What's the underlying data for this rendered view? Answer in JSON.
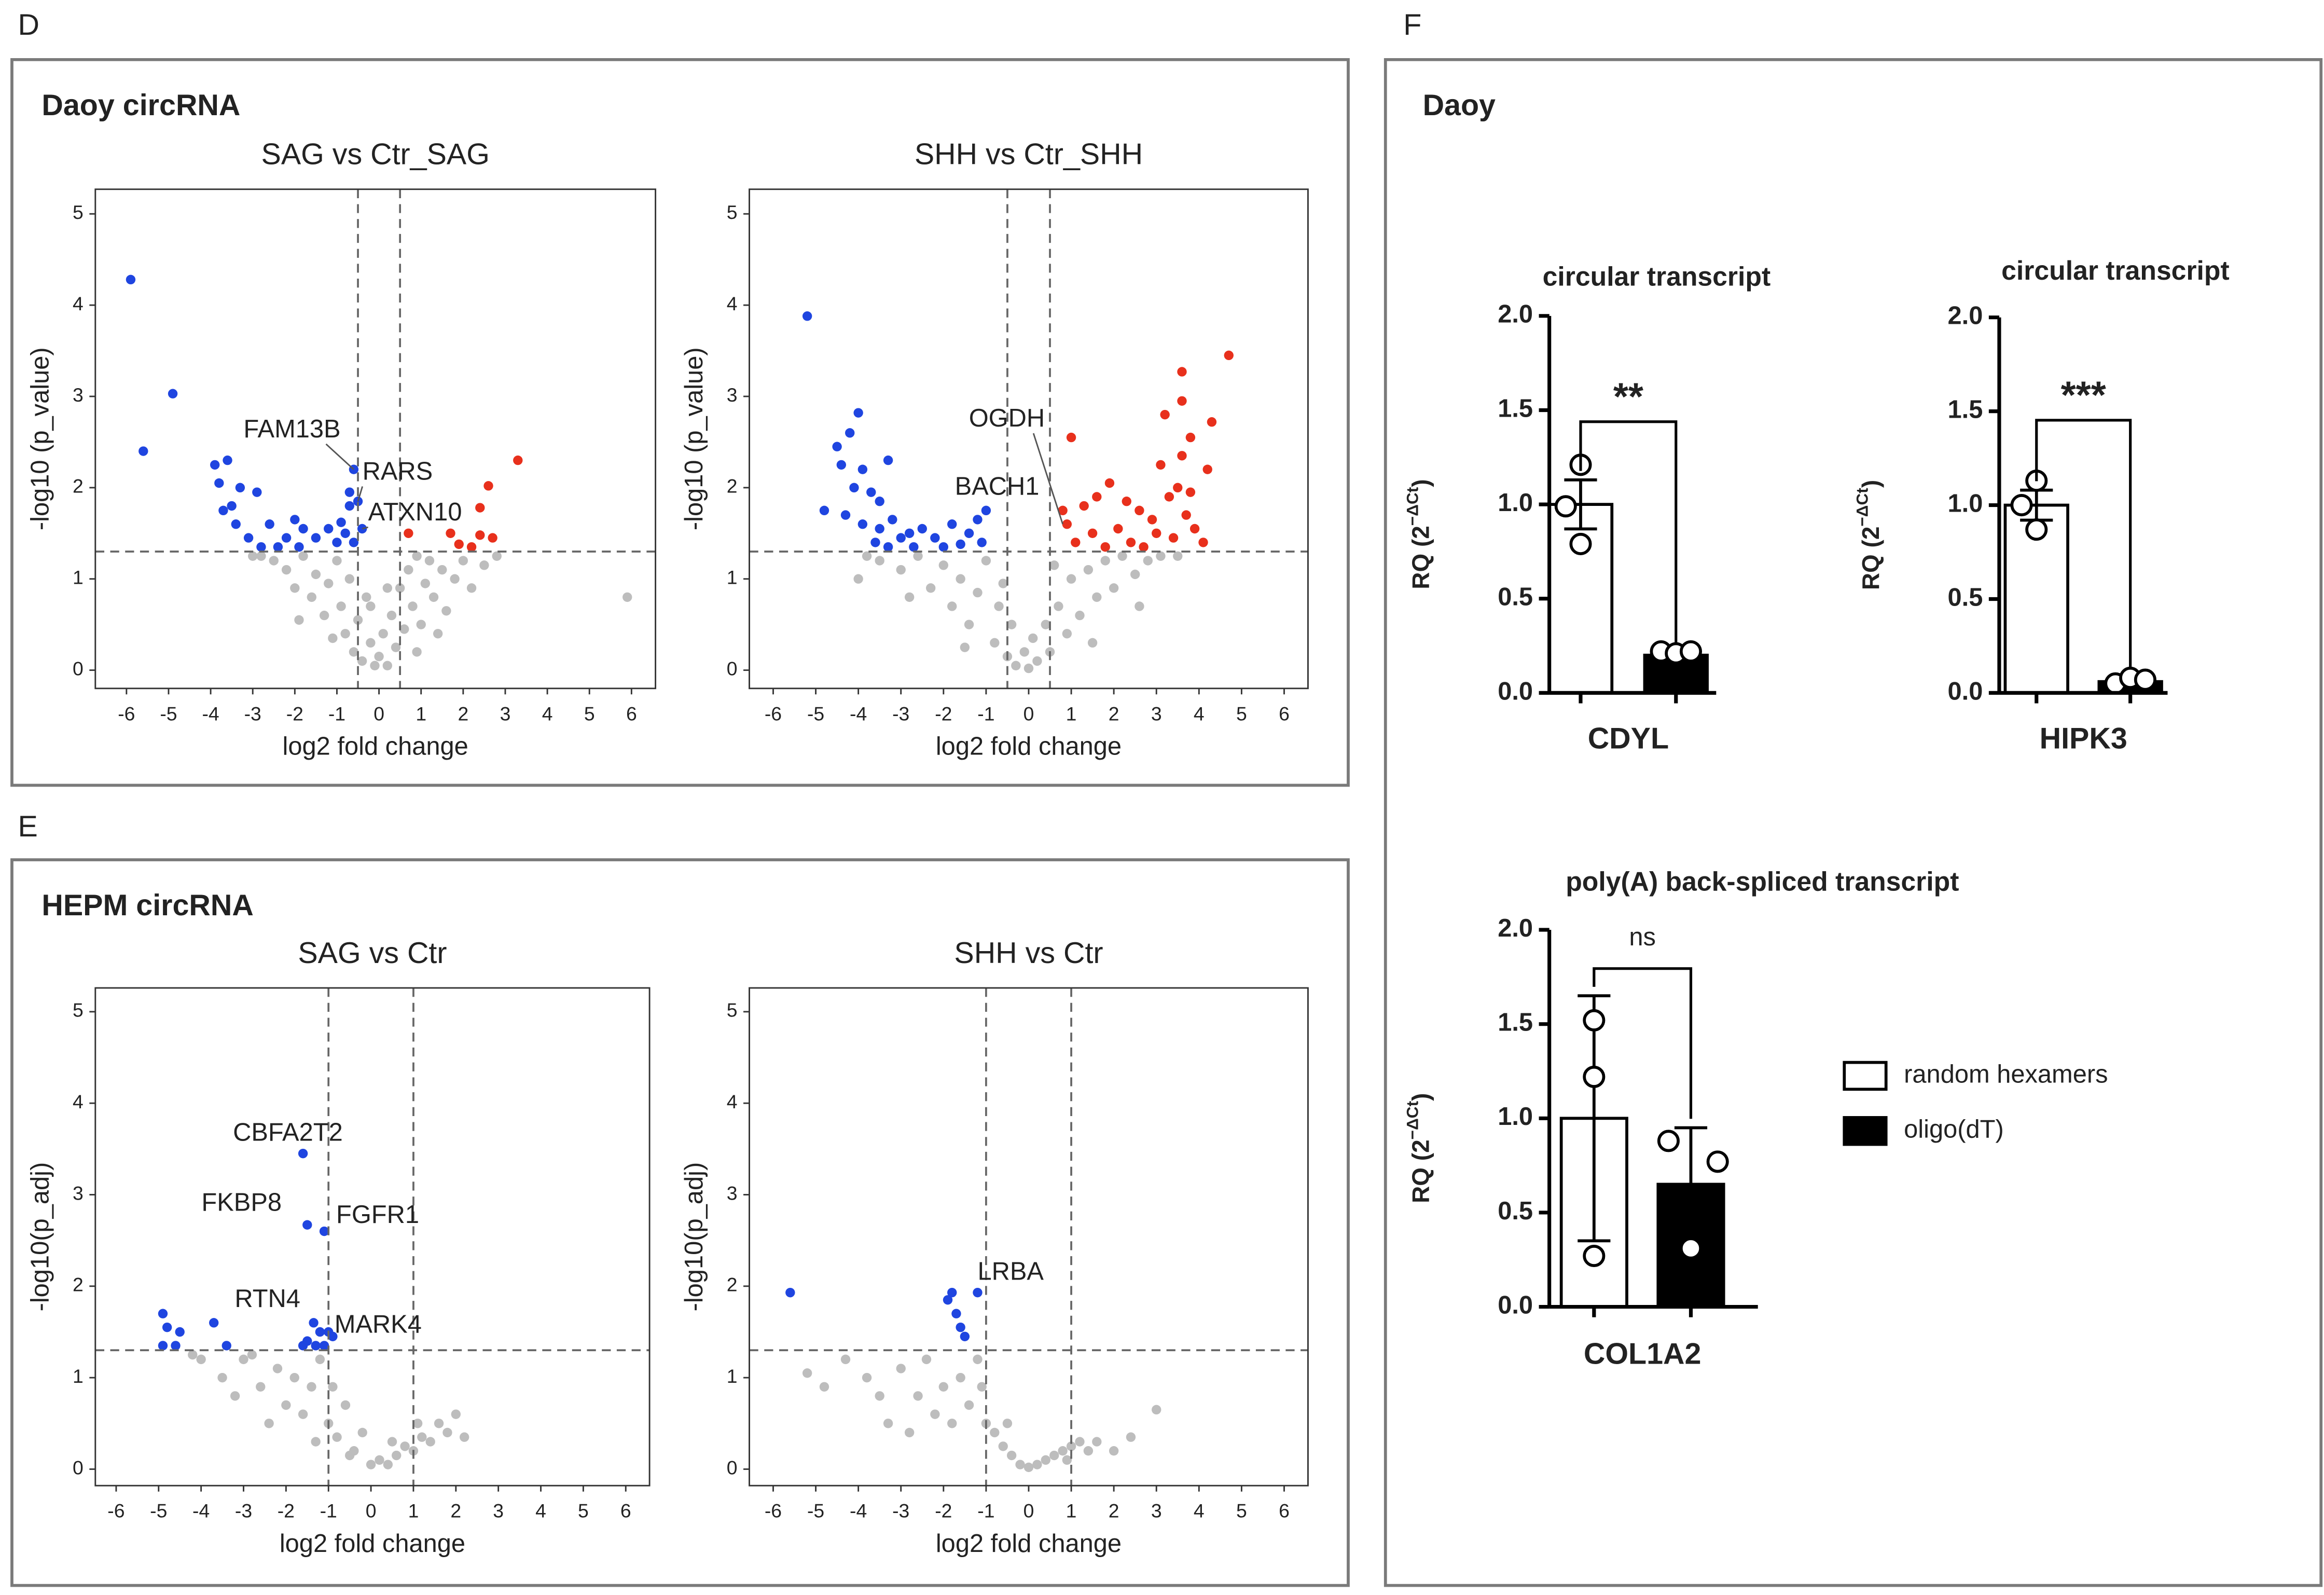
{
  "panels": [
    {
      "letter": "D",
      "title": "Daoy circRNA"
    },
    {
      "letter": "E",
      "title": "HEPM circRNA"
    },
    {
      "letter": "F",
      "title": "Daoy"
    }
  ],
  "chart_data": [
    {
      "type": "scatter",
      "title": "SAG vs Ctr_SAG",
      "x_label": "log2 fold change",
      "y_label": "-log10 (p_value)",
      "xlim": [
        -6.74,
        6.57
      ],
      "ylim": [
        -0.2,
        5.27
      ],
      "xticks": [
        -6,
        -5,
        -4,
        -3,
        -2,
        -1,
        0,
        1,
        2,
        3,
        4,
        5,
        6
      ],
      "yticks": [
        0,
        1,
        2,
        3,
        4,
        5
      ],
      "vlines": [
        -0.5,
        0.5
      ],
      "hlines": [
        1.3
      ],
      "series": [
        {
          "color": "#bdbdbd",
          "x": [
            -2.5,
            -2.2,
            -2.0,
            -1.8,
            -1.6,
            -1.5,
            -1.3,
            -1.2,
            -1.0,
            -0.9,
            -0.8,
            -0.7,
            -0.6,
            -0.5,
            -0.4,
            -0.3,
            -0.2,
            -0.1,
            0,
            0.1,
            0.2,
            0.3,
            0.4,
            0.5,
            0.6,
            0.7,
            0.8,
            0.9,
            1.0,
            1.1,
            1.2,
            1.3,
            1.5,
            1.6,
            1.8,
            2.0,
            2.2,
            2.5,
            -2.8,
            -1.1,
            0.9,
            1.4,
            -1.9,
            2.8,
            5.9,
            -0.2,
            0.2,
            -3.0
          ],
          "y": [
            1.2,
            1.1,
            0.9,
            1.25,
            0.8,
            1.05,
            0.6,
            0.95,
            1.2,
            0.7,
            0.4,
            1.0,
            0.2,
            0.55,
            0.1,
            0.8,
            0.3,
            0.05,
            0.15,
            0.4,
            0.05,
            0.6,
            0.25,
            0.9,
            0.45,
            1.1,
            0.7,
            1.25,
            0.5,
            0.95,
            1.2,
            0.8,
            1.1,
            0.65,
            1.0,
            1.2,
            0.9,
            1.15,
            1.25,
            0.35,
            0.2,
            0.4,
            0.55,
            1.25,
            0.8,
            0.7,
            0.9,
            1.25
          ]
        },
        {
          "color": "#1f45e0",
          "x": [
            -5.9,
            -4.9,
            -5.6,
            -3.9,
            -3.6,
            -3.8,
            -3.3,
            -3.5,
            -2.9,
            -3.4,
            -2.6,
            -3.1,
            -2.4,
            -2.8,
            -2.0,
            -1.8,
            -1.5,
            -1.2,
            -0.9,
            -0.8,
            -0.7,
            -0.6,
            -0.7,
            -1.0,
            -1.9,
            -0.6,
            -3.7,
            -2.2,
            -0.5,
            -0.4
          ],
          "y": [
            4.28,
            3.03,
            2.4,
            2.25,
            2.3,
            2.05,
            2.0,
            1.8,
            1.95,
            1.6,
            1.6,
            1.45,
            1.35,
            1.35,
            1.65,
            1.55,
            1.45,
            1.55,
            1.62,
            1.5,
            1.8,
            2.2,
            1.95,
            1.4,
            1.35,
            1.4,
            1.75,
            1.45,
            1.85,
            1.55
          ]
        },
        {
          "color": "#e8301c",
          "x": [
            3.3,
            2.6,
            2.4,
            1.7,
            2.4,
            2.7,
            1.9,
            2.2,
            0.7
          ],
          "y": [
            2.3,
            2.02,
            1.78,
            1.5,
            1.48,
            1.45,
            1.38,
            1.35,
            1.5
          ]
        }
      ],
      "annotations": [
        {
          "text": "FAM13B",
          "x": -0.6,
          "y": 2.2
        },
        {
          "text": "RARS",
          "x": -0.5,
          "y": 1.85
        },
        {
          "text": "ATXN10",
          "x": -0.4,
          "y": 1.55
        }
      ]
    },
    {
      "type": "scatter",
      "title": "SHH vs Ctr_SHH",
      "x_label": "log2 fold change",
      "y_label": "-log10 (p_value)",
      "xlim": [
        -6.56,
        6.56
      ],
      "ylim": [
        -0.2,
        5.27
      ],
      "xticks": [
        -6,
        -5,
        -4,
        -3,
        -2,
        -1,
        0,
        1,
        2,
        3,
        4,
        5,
        6
      ],
      "yticks": [
        0,
        1,
        2,
        3,
        4,
        5
      ],
      "vlines": [
        -0.5,
        0.5
      ],
      "hlines": [
        1.3
      ],
      "series": [
        {
          "color": "#bdbdbd",
          "x": [
            -3.5,
            -3.0,
            -2.6,
            -2.3,
            -2.0,
            -1.8,
            -1.6,
            -1.4,
            -1.2,
            -1.0,
            -0.8,
            -0.7,
            -0.5,
            -0.4,
            -0.3,
            -0.1,
            0,
            0.1,
            0.2,
            0.4,
            0.5,
            0.7,
            0.9,
            1.0,
            1.2,
            1.4,
            1.6,
            1.8,
            2.0,
            2.2,
            2.5,
            2.8,
            3.1,
            -3.8,
            -2.8,
            1.5,
            -1.5,
            3.5,
            -0.6,
            0.6,
            -4.0,
            2.6
          ],
          "y": [
            1.2,
            1.1,
            1.25,
            0.9,
            1.15,
            0.7,
            1.0,
            0.5,
            0.85,
            1.2,
            0.3,
            0.7,
            0.15,
            0.5,
            0.05,
            0.2,
            0.02,
            0.35,
            0.1,
            0.5,
            0.2,
            0.7,
            0.4,
            1.0,
            0.6,
            1.1,
            0.8,
            1.2,
            0.9,
            1.25,
            1.05,
            1.2,
            1.25,
            1.25,
            0.8,
            0.3,
            0.25,
            1.25,
            0.95,
            1.15,
            1.0,
            0.7
          ]
        },
        {
          "color": "#1f45e0",
          "x": [
            -5.2,
            -4.0,
            -4.2,
            -4.5,
            -4.4,
            -3.9,
            -3.3,
            -4.1,
            -3.7,
            -3.5,
            -4.8,
            -4.3,
            -3.9,
            -3.5,
            -3.2,
            -2.8,
            -3.0,
            -2.5,
            -2.2,
            -1.8,
            -1.4,
            -1.0,
            -1.2,
            -3.6,
            -2.7,
            -2.0,
            -1.6,
            -3.3,
            -1.1
          ],
          "y": [
            3.88,
            2.82,
            2.6,
            2.45,
            2.25,
            2.2,
            2.3,
            2.0,
            1.95,
            1.85,
            1.75,
            1.7,
            1.6,
            1.55,
            1.65,
            1.5,
            1.45,
            1.55,
            1.45,
            1.6,
            1.5,
            1.75,
            1.65,
            1.4,
            1.35,
            1.35,
            1.38,
            1.35,
            1.4
          ]
        },
        {
          "color": "#e8301c",
          "x": [
            4.7,
            3.6,
            3.6,
            3.2,
            4.3,
            3.8,
            3.6,
            1.0,
            4.2,
            3.1,
            3.5,
            3.8,
            3.3,
            1.9,
            1.6,
            2.3,
            2.6,
            1.3,
            2.9,
            3.7,
            0.9,
            1.5,
            2.1,
            2.4,
            3.0,
            3.4,
            1.1,
            0.8,
            1.8,
            2.7,
            3.9,
            4.1
          ],
          "y": [
            3.45,
            3.27,
            2.95,
            2.8,
            2.72,
            2.55,
            2.35,
            2.55,
            2.2,
            2.25,
            2.0,
            1.95,
            1.9,
            2.05,
            1.9,
            1.85,
            1.75,
            1.8,
            1.65,
            1.7,
            1.6,
            1.5,
            1.55,
            1.4,
            1.5,
            1.45,
            1.4,
            1.75,
            1.35,
            1.35,
            1.55,
            1.4
          ]
        }
      ],
      "annotations": [
        {
          "text": "OGDH",
          "x": 0.8,
          "y": 1.6
        },
        {
          "text": "BACH1",
          "x": -1.0,
          "y": 1.75
        }
      ]
    },
    {
      "type": "scatter",
      "title": "SAG vs Ctr",
      "x_label": "log2 fold change",
      "y_label": "-log10(p_adj)",
      "xlim": [
        -6.49,
        6.56
      ],
      "ylim": [
        -0.18,
        5.26
      ],
      "xticks": [
        -6,
        -5,
        -4,
        -3,
        -2,
        -1,
        0,
        1,
        2,
        3,
        4,
        5,
        6
      ],
      "yticks": [
        0,
        1,
        2,
        3,
        4,
        5
      ],
      "vlines": [
        -1,
        1
      ],
      "hlines": [
        1.3
      ],
      "series": [
        {
          "color": "#bdbdbd",
          "x": [
            -4.0,
            -3.5,
            -3.0,
            -2.6,
            -2.2,
            -2.0,
            -1.8,
            -1.6,
            -1.4,
            -1.2,
            -1.0,
            -0.8,
            -0.6,
            -0.4,
            -0.2,
            0,
            0.2,
            0.4,
            0.6,
            0.8,
            1.0,
            1.2,
            1.4,
            1.6,
            1.8,
            2.0,
            2.2,
            -3.2,
            -2.4,
            -1.3,
            -0.9,
            0.5,
            1.1,
            -0.5,
            -4.2,
            -2.8
          ],
          "y": [
            1.2,
            1.0,
            1.2,
            0.9,
            1.1,
            0.7,
            1.0,
            0.6,
            0.9,
            1.2,
            0.5,
            0.35,
            0.7,
            0.2,
            0.4,
            0.05,
            0.1,
            0.05,
            0.15,
            0.25,
            0.2,
            0.35,
            0.3,
            0.5,
            0.4,
            0.6,
            0.35,
            0.8,
            0.5,
            0.3,
            0.9,
            0.3,
            0.5,
            0.15,
            1.25,
            1.25
          ]
        },
        {
          "color": "#1f45e0",
          "x": [
            -4.9,
            -4.8,
            -4.5,
            -3.7,
            -4.9,
            -4.6,
            -3.4,
            -1.6,
            -1.5,
            -1.1,
            -1.35,
            -1.2,
            -1.0,
            -1.5,
            -1.3,
            -1.1,
            -0.9,
            -1.6
          ],
          "y": [
            1.7,
            1.55,
            1.5,
            1.6,
            1.35,
            1.35,
            1.35,
            3.45,
            2.67,
            2.6,
            1.6,
            1.5,
            1.5,
            1.4,
            1.35,
            1.35,
            1.45,
            1.35
          ]
        }
      ],
      "annotations": [
        {
          "text": "CBFA2T2",
          "x": -1.6,
          "y": 3.45
        },
        {
          "text": "FKBP8",
          "x": -1.5,
          "y": 2.67
        },
        {
          "text": "FGFR1",
          "x": -1.1,
          "y": 2.6
        },
        {
          "text": "RTN4",
          "x": -1.35,
          "y": 1.6
        },
        {
          "text": "MARK4",
          "x": -1.0,
          "y": 1.5
        }
      ]
    },
    {
      "type": "scatter",
      "title": "SHH vs Ctr",
      "x_label": "log2 fold change",
      "y_label": "-log10(p_adj)",
      "xlim": [
        -6.56,
        6.56
      ],
      "ylim": [
        -0.18,
        5.26
      ],
      "xticks": [
        -6,
        -5,
        -4,
        -3,
        -2,
        -1,
        0,
        1,
        2,
        3,
        4,
        5,
        6
      ],
      "yticks": [
        0,
        1,
        2,
        3,
        4,
        5
      ],
      "vlines": [
        -1,
        1
      ],
      "hlines": [
        1.3
      ],
      "series": [
        {
          "color": "#bdbdbd",
          "x": [
            -5.2,
            -4.8,
            -4.3,
            -3.8,
            -3.5,
            -3.0,
            -2.6,
            -2.4,
            -2.2,
            -2.0,
            -1.8,
            -1.6,
            -1.4,
            -1.2,
            -1.0,
            -0.8,
            -0.6,
            -0.4,
            -0.2,
            0,
            0.2,
            0.4,
            0.6,
            0.8,
            1.0,
            1.2,
            1.4,
            1.6,
            2.0,
            2.4,
            3.0,
            -2.8,
            -1.1,
            -3.3,
            0.9,
            -0.5
          ],
          "y": [
            1.05,
            0.9,
            1.2,
            1.0,
            0.8,
            1.1,
            0.8,
            1.2,
            0.6,
            0.9,
            0.5,
            1.0,
            0.7,
            1.2,
            0.5,
            0.4,
            0.25,
            0.15,
            0.05,
            0.02,
            0.05,
            0.1,
            0.15,
            0.2,
            0.25,
            0.3,
            0.2,
            0.3,
            0.2,
            0.35,
            0.65,
            0.4,
            0.9,
            0.5,
            0.1,
            0.5
          ]
        },
        {
          "color": "#1f45e0",
          "x": [
            -5.6,
            -1.8,
            -1.9,
            -1.7,
            -1.6,
            -1.5,
            -1.2
          ],
          "y": [
            1.93,
            1.93,
            1.85,
            1.7,
            1.55,
            1.45,
            1.93
          ]
        }
      ],
      "annotations": [
        {
          "text": "LRBA",
          "x": -1.2,
          "y": 1.93
        }
      ]
    },
    {
      "type": "bar",
      "title": "circular transcript",
      "categories": [
        "CDYL"
      ],
      "y_label": {
        "base": "RQ (2",
        "exponent": "−ΔCt",
        "close": ")"
      },
      "ylim": [
        0,
        2
      ],
      "yticks": [
        {
          "value": 0,
          "label": "0.0"
        },
        0.5,
        {
          "value": 1,
          "label": "1.0"
        },
        1.5,
        {
          "value": 2,
          "label": "2.0"
        }
      ],
      "series": [
        {
          "color": "#ffffff",
          "values": [
            1.0
          ],
          "errors": [
            0.13
          ],
          "points": [
            [
              1.21,
              0.99,
              0.79
            ]
          ]
        },
        {
          "color": "#000000",
          "values": [
            0.2
          ],
          "errors": [
            0.02
          ],
          "points": [
            [
              0.22,
              0.21,
              0.22
            ]
          ]
        }
      ],
      "significance": "**"
    },
    {
      "type": "bar",
      "title": "circular transcript",
      "categories": [
        "HIPK3"
      ],
      "y_label": {
        "base": "RQ (2",
        "exponent": "−ΔCt",
        "close": ")"
      },
      "ylim": [
        0,
        2
      ],
      "yticks": [
        {
          "value": 0,
          "label": "0.0"
        },
        0.5,
        {
          "value": 1,
          "label": "1.0"
        },
        1.5,
        {
          "value": 2,
          "label": "2.0"
        }
      ],
      "series": [
        {
          "color": "#ffffff",
          "values": [
            1.0
          ],
          "errors": [
            0.08
          ],
          "points": [
            [
              1.13,
              1.0,
              0.87
            ]
          ]
        },
        {
          "color": "#000000",
          "values": [
            0.06
          ],
          "errors": [
            0.02
          ],
          "points": [
            [
              0.05,
              0.08,
              0.07
            ]
          ]
        }
      ],
      "significance": "***"
    },
    {
      "type": "bar",
      "title": "poly(A) back-spliced transcript",
      "categories": [
        "COL1A2"
      ],
      "y_label": {
        "base": "RQ (2",
        "exponent": "−ΔCt",
        "close": ")"
      },
      "ylim": [
        0,
        2
      ],
      "yticks": [
        {
          "value": 0,
          "label": "0.0"
        },
        0.5,
        {
          "value": 1,
          "label": "1.0"
        },
        1.5,
        {
          "value": 2,
          "label": "2.0"
        }
      ],
      "series": [
        {
          "name": "random hexamers",
          "color": "#ffffff",
          "values": [
            1.0
          ],
          "errors": [
            0.65
          ],
          "points": [
            [
              1.52,
              1.22,
              0.27
            ]
          ]
        },
        {
          "name": "oligo(dT)",
          "color": "#000000",
          "values": [
            0.65
          ],
          "errors": [
            0.3
          ],
          "points": [
            [
              0.88,
              0.77,
              0.31
            ]
          ]
        }
      ],
      "significance": "ns",
      "legend": "right"
    }
  ]
}
